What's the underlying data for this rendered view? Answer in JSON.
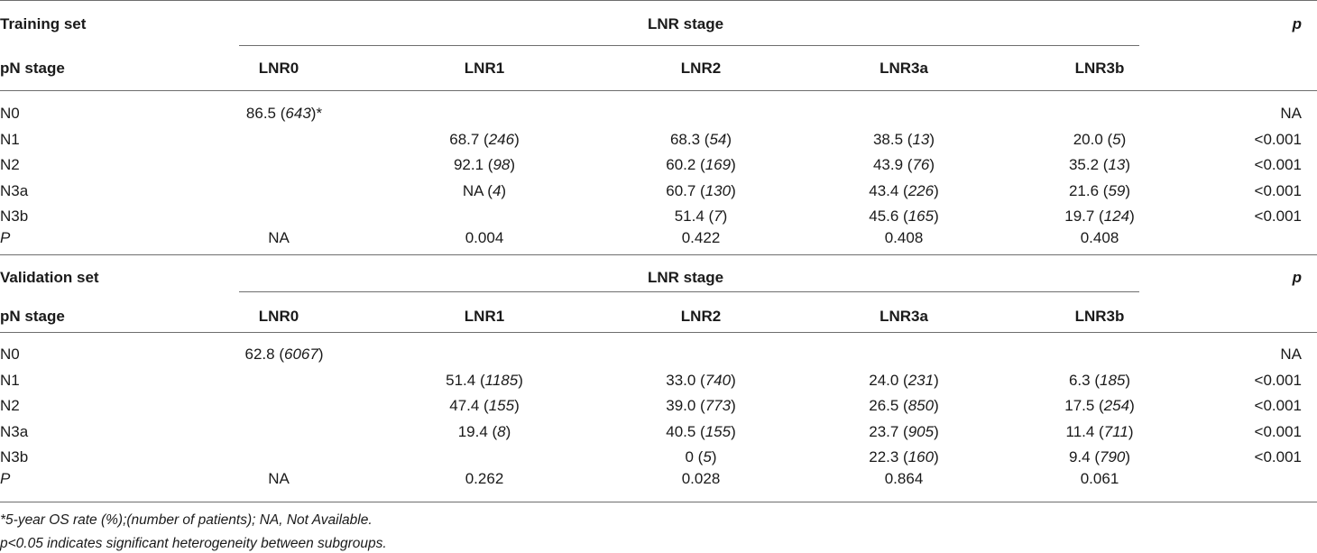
{
  "training": {
    "title": "Training set",
    "group_header": "LNR stage",
    "p_header": "p",
    "row_header": "pN stage",
    "columns": [
      "LNR0",
      "LNR1",
      "LNR2",
      "LNR3a",
      "LNR3b"
    ],
    "rows": [
      {
        "label": "N0",
        "cells": [
          {
            "v": "86.5 (",
            "n": "643",
            "s": ")*"
          },
          null,
          null,
          null,
          null
        ],
        "p": "NA"
      },
      {
        "label": "N1",
        "cells": [
          null,
          {
            "v": "68.7 (",
            "n": "246",
            "s": ")"
          },
          {
            "v": "68.3 (",
            "n": "54",
            "s": ")"
          },
          {
            "v": "38.5 (",
            "n": "13",
            "s": ")"
          },
          {
            "v": "20.0 (",
            "n": "5",
            "s": ")"
          }
        ],
        "p": "<0.001"
      },
      {
        "label": "N2",
        "cells": [
          null,
          {
            "v": "92.1 (",
            "n": "98",
            "s": ")"
          },
          {
            "v": "60.2 (",
            "n": "169",
            "s": ")"
          },
          {
            "v": "43.9 (",
            "n": "76",
            "s": ")"
          },
          {
            "v": "35.2 (",
            "n": "13",
            "s": ")"
          }
        ],
        "p": "<0.001"
      },
      {
        "label": "N3a",
        "cells": [
          null,
          {
            "v": "NA (",
            "n": "4",
            "s": ")"
          },
          {
            "v": "60.7 (",
            "n": "130",
            "s": ")"
          },
          {
            "v": "43.4 (",
            "n": "226",
            "s": ")"
          },
          {
            "v": "21.6 (",
            "n": "59",
            "s": ")"
          }
        ],
        "p": "<0.001"
      },
      {
        "label": "N3b",
        "cells": [
          null,
          null,
          {
            "v": "51.4 (",
            "n": "7",
            "s": ")"
          },
          {
            "v": "45.6 (",
            "n": "165",
            "s": ")"
          },
          {
            "v": "19.7 (",
            "n": "124",
            "s": ")"
          }
        ],
        "p": "<0.001"
      }
    ],
    "p_row": {
      "label": "P",
      "values": [
        "NA",
        "0.004",
        "0.422",
        "0.408",
        "0.408"
      ]
    }
  },
  "validation": {
    "title": "Validation set",
    "group_header": "LNR stage",
    "p_header": "p",
    "row_header": "pN stage",
    "columns": [
      "LNR0",
      "LNR1",
      "LNR2",
      "LNR3a",
      "LNR3b"
    ],
    "rows": [
      {
        "label": "N0",
        "cells": [
          {
            "v": "62.8 (",
            "n": "6067",
            "s": ")"
          },
          null,
          null,
          null,
          null
        ],
        "p": "NA"
      },
      {
        "label": "N1",
        "cells": [
          null,
          {
            "v": "51.4 (",
            "n": "1185",
            "s": ")"
          },
          {
            "v": "33.0 (",
            "n": "740",
            "s": ")"
          },
          {
            "v": "24.0 (",
            "n": "231",
            "s": ")"
          },
          {
            "v": "6.3 (",
            "n": "185",
            "s": ")"
          }
        ],
        "p": "<0.001"
      },
      {
        "label": "N2",
        "cells": [
          null,
          {
            "v": "47.4 (",
            "n": "155",
            "s": ")"
          },
          {
            "v": "39.0 (",
            "n": "773",
            "s": ")"
          },
          {
            "v": "26.5 (",
            "n": "850",
            "s": ")"
          },
          {
            "v": "17.5 (",
            "n": "254",
            "s": ")"
          }
        ],
        "p": "<0.001"
      },
      {
        "label": "N3a",
        "cells": [
          null,
          {
            "v": "19.4 (",
            "n": "8",
            "s": ")"
          },
          {
            "v": "40.5 (",
            "n": "155",
            "s": ")"
          },
          {
            "v": "23.7 (",
            "n": "905",
            "s": ")"
          },
          {
            "v": "11.4 (",
            "n": "711",
            "s": ")"
          }
        ],
        "p": "<0.001"
      },
      {
        "label": "N3b",
        "cells": [
          null,
          null,
          {
            "v": "0 (",
            "n": "5",
            "s": ")"
          },
          {
            "v": "22.3 (",
            "n": "160",
            "s": ")"
          },
          {
            "v": "9.4 (",
            "n": "790",
            "s": ")"
          }
        ],
        "p": "<0.001"
      }
    ],
    "p_row": {
      "label": "P",
      "values": [
        "NA",
        "0.262",
        "0.028",
        "0.864",
        "0.061"
      ]
    }
  },
  "footnotes": [
    "*5-year OS rate (%);(number of patients); NA, Not Available.",
    "p<0.05 indicates significant heterogeneity between subgroups."
  ]
}
